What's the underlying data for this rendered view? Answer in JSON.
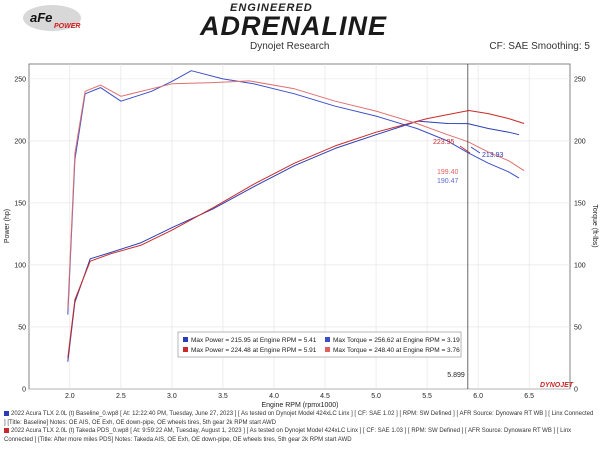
{
  "header": {
    "brand_top": "ENGINEERED",
    "brand_main": "ADRENALINE",
    "logo_text": "aFe",
    "logo_sub": "POWER",
    "research": "Dynojet Research",
    "cf_info": "CF: SAE Smoothing: 5"
  },
  "legend": {
    "entries": [
      {
        "text": "Max Power = 215.95 at Engine RPM = 5.41",
        "color": "#2b3db5"
      },
      {
        "text": "Max Torque = 256.62 at Engine RPM = 3.19",
        "color": "#3d4fc8"
      },
      {
        "text": "Max Power = 224.48 at Engine RPM = 5.91",
        "color": "#c92a2a"
      },
      {
        "text": "Max Torque = 248.40 at Engine RPM = 3.76",
        "color": "#e06060"
      }
    ]
  },
  "annotations": {
    "v1": "223.95",
    "v2": "213.93",
    "v3": "199.40",
    "v4": "190.47",
    "cursor": "5.899",
    "dynojet": "DYNOJET"
  },
  "footer": {
    "line1": "2022 Acura TLX 2.0L (t) Baseline_0.wp8 [ At: 12:22:40 PM, Tuesday, June 27, 2023 ] [ As tested on Dynojet Model 424xLC Linx ] [ CF: SAE 1.02 ] [ RPM: SW Defined ] [ AFR Source: Dynoware RT WB ] [ Linx Connected ] [Title: Baseline] Notes: OE AIS, OE Exh, OE down-pipe, OE wheels tires, 5th gear 2k RPM start AWD",
    "line2": "2022 Acura TLX 2.0L (t) Takeda PDS_0.wp8 [ At: 9:59:22 AM, Tuesday, August 1, 2023 ] [ As tested on Dynojet Model 424xLC Linx ] [ CF: SAE 1.03 ] [ RPM: SW Defined ] [ AFR Source: Dynoware RT WB ] [ Linx Connected ] [Title: After more miles PDS] Notes: Takeda AIS, OE Exh, OE down-pipe, OE wheels tires, 5th gear 2k RPM start AWD",
    "color1": "#2b3db5",
    "color2": "#c92a2a"
  },
  "chart_data": {
    "type": "line",
    "xlabel": "Engine RPM (rpmx1000)",
    "ylabel": "Power (hp)",
    "y2label": "Torque (ft-lbs)",
    "xlim": [
      1.6,
      6.9
    ],
    "ylim": [
      0,
      262
    ],
    "xticks": [
      2.0,
      2.5,
      3.0,
      3.5,
      4.0,
      4.5,
      5.0,
      5.5,
      6.0,
      6.5
    ],
    "yticks": [
      0,
      50,
      100,
      150,
      200,
      250
    ],
    "grid": true,
    "cursor_x": 5.899,
    "series": [
      {
        "name": "Baseline Power",
        "color": "#2b3db5",
        "x": [
          1.98,
          2.05,
          2.2,
          2.4,
          2.7,
          3.0,
          3.4,
          3.8,
          4.2,
          4.6,
          5.0,
          5.41,
          5.7,
          5.9,
          6.1,
          6.3,
          6.4
        ],
        "y": [
          22,
          70,
          105,
          110,
          118,
          130,
          145,
          163,
          180,
          194,
          205,
          215.95,
          214,
          213.93,
          210,
          207,
          205
        ]
      },
      {
        "name": "Takeda Power",
        "color": "#c92a2a",
        "x": [
          1.98,
          2.05,
          2.2,
          2.4,
          2.7,
          3.0,
          3.4,
          3.8,
          4.2,
          4.6,
          5.0,
          5.5,
          5.91,
          6.1,
          6.3,
          6.45
        ],
        "y": [
          25,
          72,
          103,
          109,
          116,
          128,
          146,
          165,
          182,
          196,
          207,
          218,
          224.48,
          222,
          218,
          214
        ]
      },
      {
        "name": "Baseline Torque",
        "color": "#3d4fc8",
        "x": [
          1.98,
          2.05,
          2.15,
          2.3,
          2.5,
          2.8,
          3.0,
          3.19,
          3.5,
          3.8,
          4.2,
          4.6,
          5.0,
          5.4,
          5.7,
          5.9,
          6.1,
          6.3,
          6.4
        ],
        "y": [
          60,
          185,
          238,
          243,
          232,
          240,
          248,
          256.62,
          250,
          246,
          238,
          228,
          220,
          210,
          200,
          190.47,
          182,
          175,
          170
        ]
      },
      {
        "name": "Takeda Torque",
        "color": "#e07070",
        "x": [
          1.98,
          2.05,
          2.15,
          2.3,
          2.5,
          2.8,
          3.0,
          3.4,
          3.76,
          4.2,
          4.6,
          5.0,
          5.4,
          5.7,
          5.9,
          6.1,
          6.3,
          6.45
        ],
        "y": [
          65,
          190,
          240,
          245,
          236,
          242,
          246,
          247,
          248.4,
          242,
          232,
          224,
          214,
          205,
          199.4,
          191,
          184,
          176
        ]
      }
    ]
  }
}
